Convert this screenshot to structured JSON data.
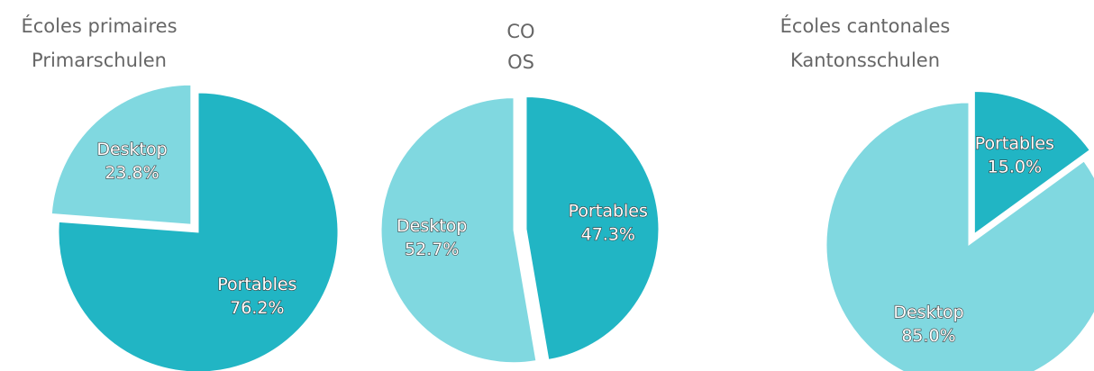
{
  "chart_data": [
    {
      "type": "pie",
      "title": [
        "Écoles primaires",
        "Primarschulen"
      ],
      "categories": [
        "Portables",
        "Desktop"
      ],
      "values": [
        76.2,
        23.8
      ],
      "value_labels": [
        "76.2%",
        "23.8%"
      ],
      "colors": [
        "#21b5c4",
        "#80d8e0"
      ]
    },
    {
      "type": "pie",
      "title": [
        "CO",
        "OS"
      ],
      "categories": [
        "Portables",
        "Desktop"
      ],
      "values": [
        47.3,
        52.7
      ],
      "value_labels": [
        "47.3%",
        "52.7%"
      ],
      "colors": [
        "#21b5c4",
        "#80d8e0"
      ]
    },
    {
      "type": "pie",
      "title": [
        "Écoles cantonales",
        "Kantonsschulen"
      ],
      "categories": [
        "Portables",
        "Desktop"
      ],
      "values": [
        15.0,
        85.0
      ],
      "value_labels": [
        "15.0%",
        "85.0%"
      ],
      "colors": [
        "#21b5c4",
        "#80d8e0"
      ]
    }
  ]
}
